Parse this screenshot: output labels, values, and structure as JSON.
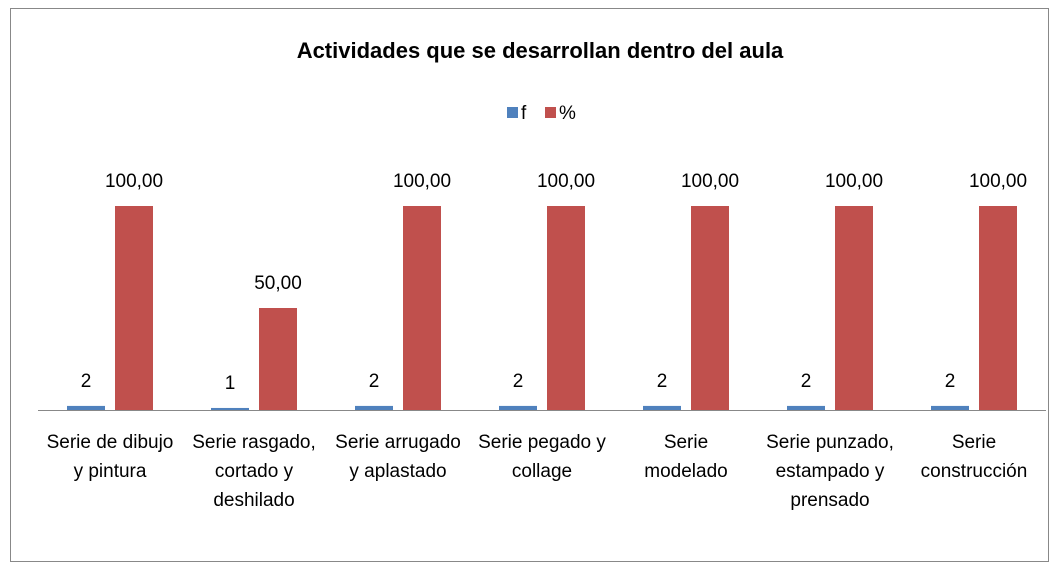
{
  "chart_data": {
    "type": "bar",
    "title": "Actividades que se desarrollan dentro del aula",
    "categories": [
      "Serie de dibujo y pintura",
      "Serie rasgado, cortado y deshilado",
      "Serie arrugado y aplastado",
      "Serie pegado y collage",
      "Serie modelado",
      "Serie punzado, estampado y prensado",
      "Serie construcción"
    ],
    "series": [
      {
        "name": "f",
        "color": "#4f81bd",
        "values": [
          2,
          1,
          2,
          2,
          2,
          2,
          2
        ]
      },
      {
        "name": "%",
        "color": "#c0504d",
        "values": [
          100,
          50,
          100,
          100,
          100,
          100,
          100
        ],
        "value_labels": [
          "100,00",
          "50,00",
          "100,00",
          "100,00",
          "100,00",
          "100,00",
          "100,00"
        ]
      }
    ],
    "ylim": [
      0,
      100
    ]
  }
}
